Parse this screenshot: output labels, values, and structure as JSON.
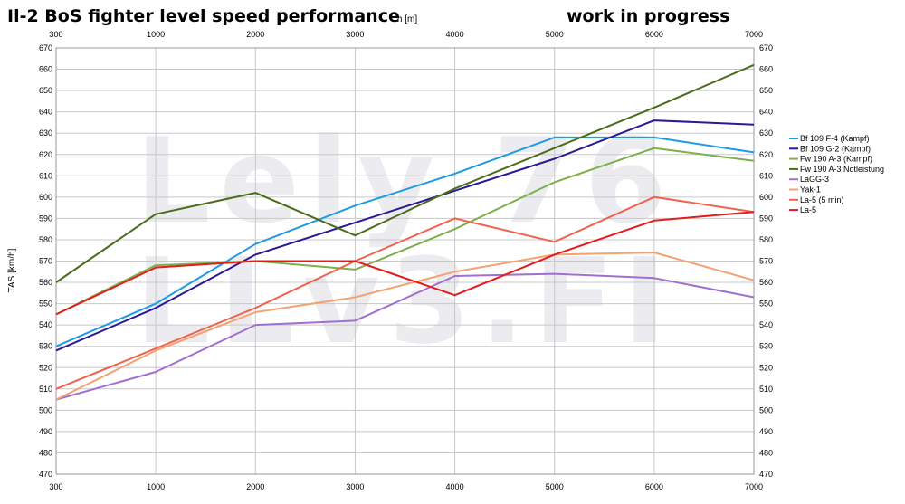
{
  "chart_data": {
    "type": "line",
    "title": "Il-2 BoS fighter level speed performance",
    "subtitle": "work in progress",
    "xlabel": "h [m]",
    "ylabel": "TAS [km/h]",
    "x": [
      300,
      1000,
      2000,
      3000,
      4000,
      5000,
      6000,
      7000
    ],
    "x_ticks": [
      "300",
      "1000",
      "2000",
      "3000",
      "4000",
      "5000",
      "6000",
      "7000"
    ],
    "ylim": [
      470,
      670
    ],
    "y_ticks": [
      "470",
      "480",
      "490",
      "500",
      "510",
      "520",
      "530",
      "540",
      "550",
      "560",
      "570",
      "580",
      "590",
      "600",
      "610",
      "620",
      "630",
      "640",
      "650",
      "660",
      "670"
    ],
    "grid": true,
    "legend_position": "right",
    "watermark": [
      "Lely 76",
      "LLv3.FI"
    ],
    "series": [
      {
        "name": "Bf 109 F-4 (Kampf)",
        "color": "#1e9be6",
        "values": [
          530,
          550,
          578,
          596,
          611,
          628,
          628,
          621
        ]
      },
      {
        "name": "Bf 109 G-2 (Kampf)",
        "color": "#2a1896",
        "values": [
          528,
          548,
          573,
          588,
          603,
          618,
          636,
          634
        ]
      },
      {
        "name": "Fw 190 A-3 (Kampf)",
        "color": "#7db04a",
        "values": [
          545,
          568,
          570,
          566,
          585,
          607,
          623,
          617
        ]
      },
      {
        "name": "Fw 190 A-3 Notleistung",
        "color": "#4b6d1b",
        "values": [
          560,
          592,
          602,
          582,
          604,
          623,
          642,
          662
        ]
      },
      {
        "name": "LaGG-3",
        "color": "#a16fcf",
        "values": [
          505,
          518,
          540,
          542,
          563,
          564,
          562,
          553
        ]
      },
      {
        "name": "Yak-1",
        "color": "#f4a270",
        "values": [
          505,
          528,
          546,
          553,
          565,
          573,
          574,
          561
        ]
      },
      {
        "name": "La-5 (5 min)",
        "color": "#f0634f",
        "values": [
          510,
          529,
          548,
          570,
          590,
          579,
          600,
          593
        ]
      },
      {
        "name": "La-5",
        "color": "#e41c1c",
        "values": [
          545,
          567,
          570,
          570,
          554,
          573,
          589,
          593
        ]
      }
    ]
  }
}
